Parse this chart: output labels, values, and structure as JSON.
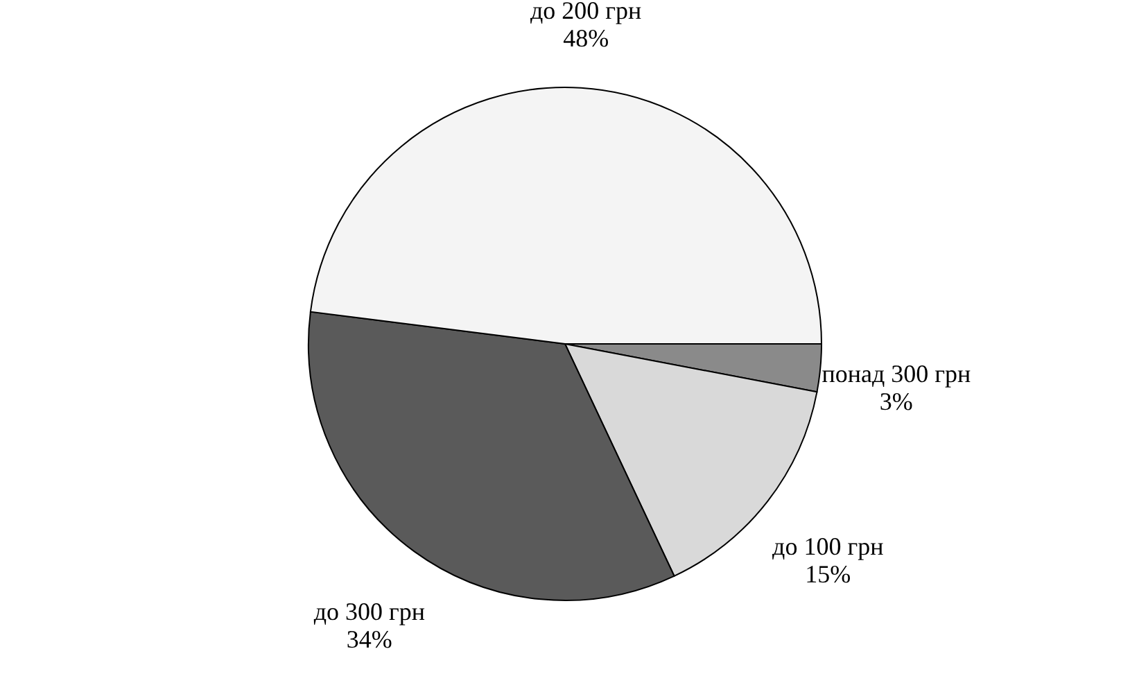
{
  "chart_data": {
    "type": "pie",
    "categories": [
      "понад 300 грн",
      "до 100 грн",
      "до 300 грн",
      "до 200 грн"
    ],
    "values": [
      3,
      15,
      34,
      48
    ],
    "value_labels": [
      "3%",
      "15%",
      "34%",
      "48%"
    ],
    "colors": [
      "#8a8a8a",
      "#d9d9d9",
      "#5a5a5a",
      "#f4f4f4"
    ],
    "legend": false
  }
}
